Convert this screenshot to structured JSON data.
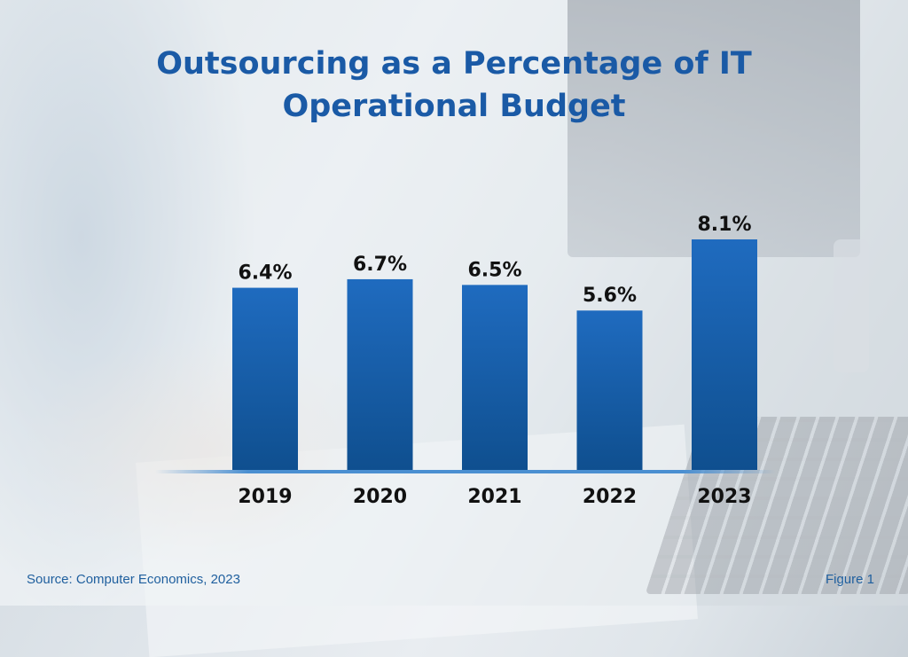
{
  "chart_data": {
    "type": "bar",
    "title": "Outsourcing as a Percentage of IT Operational Budget",
    "categories": [
      "2019",
      "2020",
      "2021",
      "2022",
      "2023"
    ],
    "values": [
      6.4,
      6.7,
      6.5,
      5.6,
      8.1
    ],
    "value_labels": [
      "6.4%",
      "6.7%",
      "6.5%",
      "5.6%",
      "8.1%"
    ],
    "ylim": [
      0,
      9
    ],
    "bar_color": "#1f6bbf",
    "bar_color_dark": "#0f4f8f",
    "baseline_color": "#4a8fd1",
    "grid": false,
    "legend": "none"
  },
  "title_line1": "Outsourcing as a Percentage of IT",
  "title_line2": "Operational Budget",
  "source": "Source: Computer Economics, 2023",
  "figure": "Figure 1"
}
